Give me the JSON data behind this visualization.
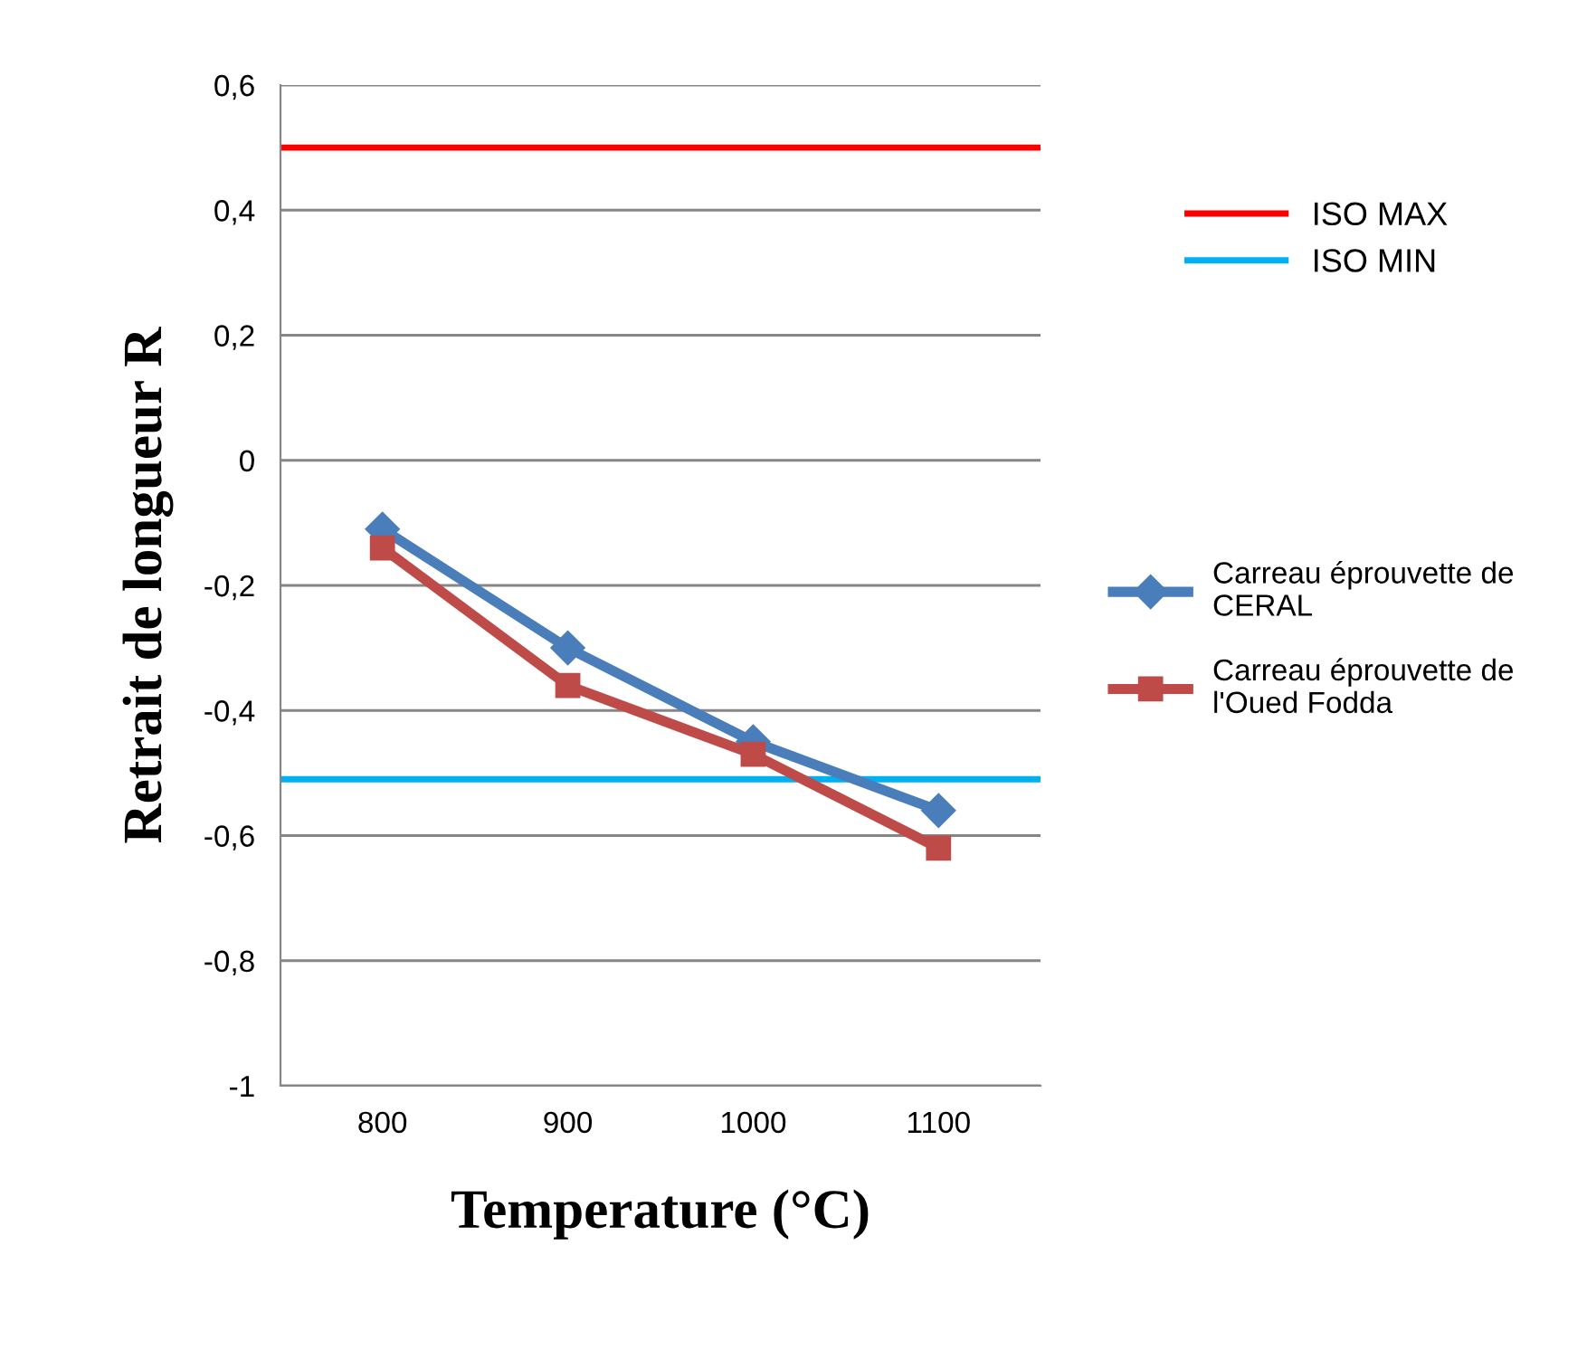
{
  "chart_data": {
    "type": "line",
    "xlabel": "Temperature (°C)",
    "ylabel": "Retrait de longueur R",
    "categories": [
      "800",
      "900",
      "1000",
      "1100"
    ],
    "series": [
      {
        "name": "Carreau éprouvette de CERAL",
        "color": "#4a7ebb",
        "values": [
          -0.11,
          -0.3,
          -0.45,
          -0.56
        ],
        "marker": "diamond"
      },
      {
        "name": "Carreau éprouvette de l'Oued Fodda",
        "color": "#be4b48",
        "values": [
          -0.14,
          -0.36,
          -0.47,
          -0.62
        ],
        "marker": "square"
      }
    ],
    "ref_lines": [
      {
        "axis": "y",
        "value": 0.5,
        "label": "ISO MAX",
        "color": "#ff0000"
      },
      {
        "axis": "y",
        "value": -0.51,
        "label": "ISO MIN",
        "color": "#00b0f0"
      }
    ],
    "ylim": [
      -1,
      0.6
    ],
    "yticks": [
      {
        "value": -1,
        "label": "-1"
      },
      {
        "value": -0.8,
        "label": "-0,8"
      },
      {
        "value": -0.6,
        "label": "-0,6"
      },
      {
        "value": -0.4,
        "label": "-0,4"
      },
      {
        "value": -0.2,
        "label": "-0,2"
      },
      {
        "value": 0,
        "label": "0"
      },
      {
        "value": 0.2,
        "label": "0,2"
      },
      {
        "value": 0.4,
        "label": "0,4"
      },
      {
        "value": 0.6,
        "label": "0,6"
      }
    ],
    "grid": "y",
    "legend": "right",
    "line_style": "solid"
  }
}
